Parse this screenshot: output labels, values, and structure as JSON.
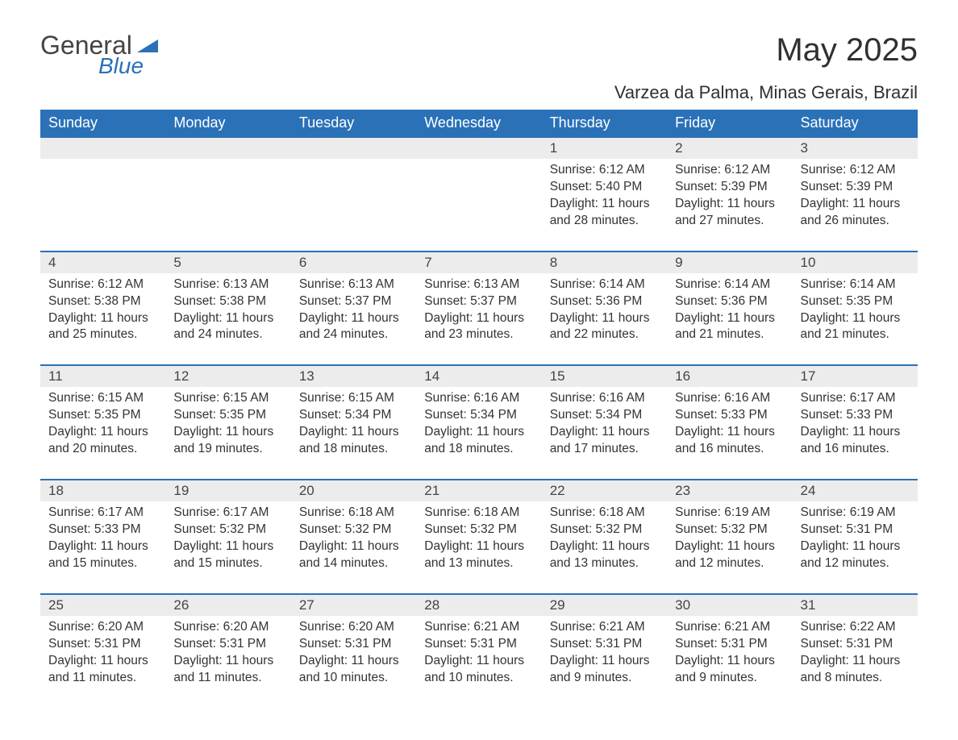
{
  "logo": {
    "text1": "General",
    "text2": "Blue"
  },
  "title": "May 2025",
  "location": "Varzea da Palma, Minas Gerais, Brazil",
  "colors": {
    "header_bg": "#2a71b8",
    "header_text": "#ffffff",
    "daynum_bg": "#ececec",
    "border_top": "#2a71b8",
    "body_text": "#333333",
    "logo_gray": "#444444",
    "logo_blue": "#2a71b8"
  },
  "weekdays": [
    "Sunday",
    "Monday",
    "Tuesday",
    "Wednesday",
    "Thursday",
    "Friday",
    "Saturday"
  ],
  "weeks": [
    [
      null,
      null,
      null,
      null,
      {
        "d": "1",
        "sr": "6:12 AM",
        "ss": "5:40 PM",
        "dl": "11 hours and 28 minutes."
      },
      {
        "d": "2",
        "sr": "6:12 AM",
        "ss": "5:39 PM",
        "dl": "11 hours and 27 minutes."
      },
      {
        "d": "3",
        "sr": "6:12 AM",
        "ss": "5:39 PM",
        "dl": "11 hours and 26 minutes."
      }
    ],
    [
      {
        "d": "4",
        "sr": "6:12 AM",
        "ss": "5:38 PM",
        "dl": "11 hours and 25 minutes."
      },
      {
        "d": "5",
        "sr": "6:13 AM",
        "ss": "5:38 PM",
        "dl": "11 hours and 24 minutes."
      },
      {
        "d": "6",
        "sr": "6:13 AM",
        "ss": "5:37 PM",
        "dl": "11 hours and 24 minutes."
      },
      {
        "d": "7",
        "sr": "6:13 AM",
        "ss": "5:37 PM",
        "dl": "11 hours and 23 minutes."
      },
      {
        "d": "8",
        "sr": "6:14 AM",
        "ss": "5:36 PM",
        "dl": "11 hours and 22 minutes."
      },
      {
        "d": "9",
        "sr": "6:14 AM",
        "ss": "5:36 PM",
        "dl": "11 hours and 21 minutes."
      },
      {
        "d": "10",
        "sr": "6:14 AM",
        "ss": "5:35 PM",
        "dl": "11 hours and 21 minutes."
      }
    ],
    [
      {
        "d": "11",
        "sr": "6:15 AM",
        "ss": "5:35 PM",
        "dl": "11 hours and 20 minutes."
      },
      {
        "d": "12",
        "sr": "6:15 AM",
        "ss": "5:35 PM",
        "dl": "11 hours and 19 minutes."
      },
      {
        "d": "13",
        "sr": "6:15 AM",
        "ss": "5:34 PM",
        "dl": "11 hours and 18 minutes."
      },
      {
        "d": "14",
        "sr": "6:16 AM",
        "ss": "5:34 PM",
        "dl": "11 hours and 18 minutes."
      },
      {
        "d": "15",
        "sr": "6:16 AM",
        "ss": "5:34 PM",
        "dl": "11 hours and 17 minutes."
      },
      {
        "d": "16",
        "sr": "6:16 AM",
        "ss": "5:33 PM",
        "dl": "11 hours and 16 minutes."
      },
      {
        "d": "17",
        "sr": "6:17 AM",
        "ss": "5:33 PM",
        "dl": "11 hours and 16 minutes."
      }
    ],
    [
      {
        "d": "18",
        "sr": "6:17 AM",
        "ss": "5:33 PM",
        "dl": "11 hours and 15 minutes."
      },
      {
        "d": "19",
        "sr": "6:17 AM",
        "ss": "5:32 PM",
        "dl": "11 hours and 15 minutes."
      },
      {
        "d": "20",
        "sr": "6:18 AM",
        "ss": "5:32 PM",
        "dl": "11 hours and 14 minutes."
      },
      {
        "d": "21",
        "sr": "6:18 AM",
        "ss": "5:32 PM",
        "dl": "11 hours and 13 minutes."
      },
      {
        "d": "22",
        "sr": "6:18 AM",
        "ss": "5:32 PM",
        "dl": "11 hours and 13 minutes."
      },
      {
        "d": "23",
        "sr": "6:19 AM",
        "ss": "5:32 PM",
        "dl": "11 hours and 12 minutes."
      },
      {
        "d": "24",
        "sr": "6:19 AM",
        "ss": "5:31 PM",
        "dl": "11 hours and 12 minutes."
      }
    ],
    [
      {
        "d": "25",
        "sr": "6:20 AM",
        "ss": "5:31 PM",
        "dl": "11 hours and 11 minutes."
      },
      {
        "d": "26",
        "sr": "6:20 AM",
        "ss": "5:31 PM",
        "dl": "11 hours and 11 minutes."
      },
      {
        "d": "27",
        "sr": "6:20 AM",
        "ss": "5:31 PM",
        "dl": "11 hours and 10 minutes."
      },
      {
        "d": "28",
        "sr": "6:21 AM",
        "ss": "5:31 PM",
        "dl": "11 hours and 10 minutes."
      },
      {
        "d": "29",
        "sr": "6:21 AM",
        "ss": "5:31 PM",
        "dl": "11 hours and 9 minutes."
      },
      {
        "d": "30",
        "sr": "6:21 AM",
        "ss": "5:31 PM",
        "dl": "11 hours and 9 minutes."
      },
      {
        "d": "31",
        "sr": "6:22 AM",
        "ss": "5:31 PM",
        "dl": "11 hours and 8 minutes."
      }
    ]
  ],
  "labels": {
    "sunrise": "Sunrise:",
    "sunset": "Sunset:",
    "daylight": "Daylight:"
  }
}
